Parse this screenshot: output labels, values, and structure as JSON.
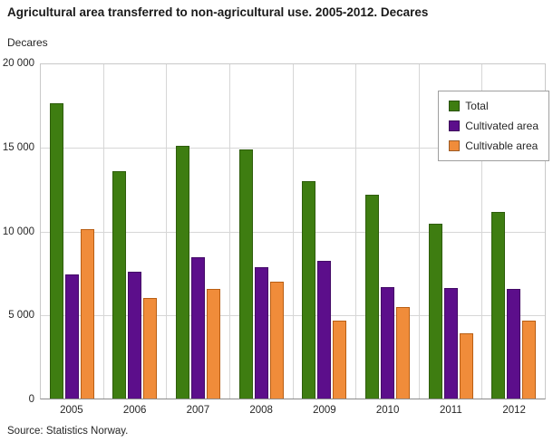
{
  "header": {
    "title": "Agricultural area transferred to non-agricultural use. 2005-2012. Decares"
  },
  "source": "Source: Statistics Norway.",
  "chart_data": {
    "type": "bar",
    "title": "Agricultural area transferred to non-agricultural use. 2005-2012. Decares",
    "xlabel": "",
    "ylabel": "Decares",
    "ylim": [
      0,
      20000
    ],
    "ytick_labels_top_to_bottom": [
      "20 000",
      "15 000",
      "10 000",
      "5 000",
      "0"
    ],
    "grid": true,
    "legend_position": "top-right",
    "categories": [
      "2005",
      "2006",
      "2007",
      "2008",
      "2009",
      "2010",
      "2011",
      "2012"
    ],
    "series": [
      {
        "name": "Total",
        "color": "#3e7d11",
        "border_color": "#2e5d0b",
        "values": [
          17650,
          13600,
          15100,
          14900,
          13000,
          12200,
          10450,
          11150
        ]
      },
      {
        "name": "Cultivated area",
        "color": "#5c0e8b",
        "border_color": "#430a66",
        "values": [
          7400,
          7600,
          8450,
          7850,
          8250,
          6650,
          6600,
          6550
        ]
      },
      {
        "name": "Cultivable area",
        "color": "#f08c3a",
        "border_color": "#b95f14",
        "values": [
          10150,
          6000,
          6550,
          7000,
          4650,
          5500,
          3900,
          4650
        ]
      }
    ]
  }
}
